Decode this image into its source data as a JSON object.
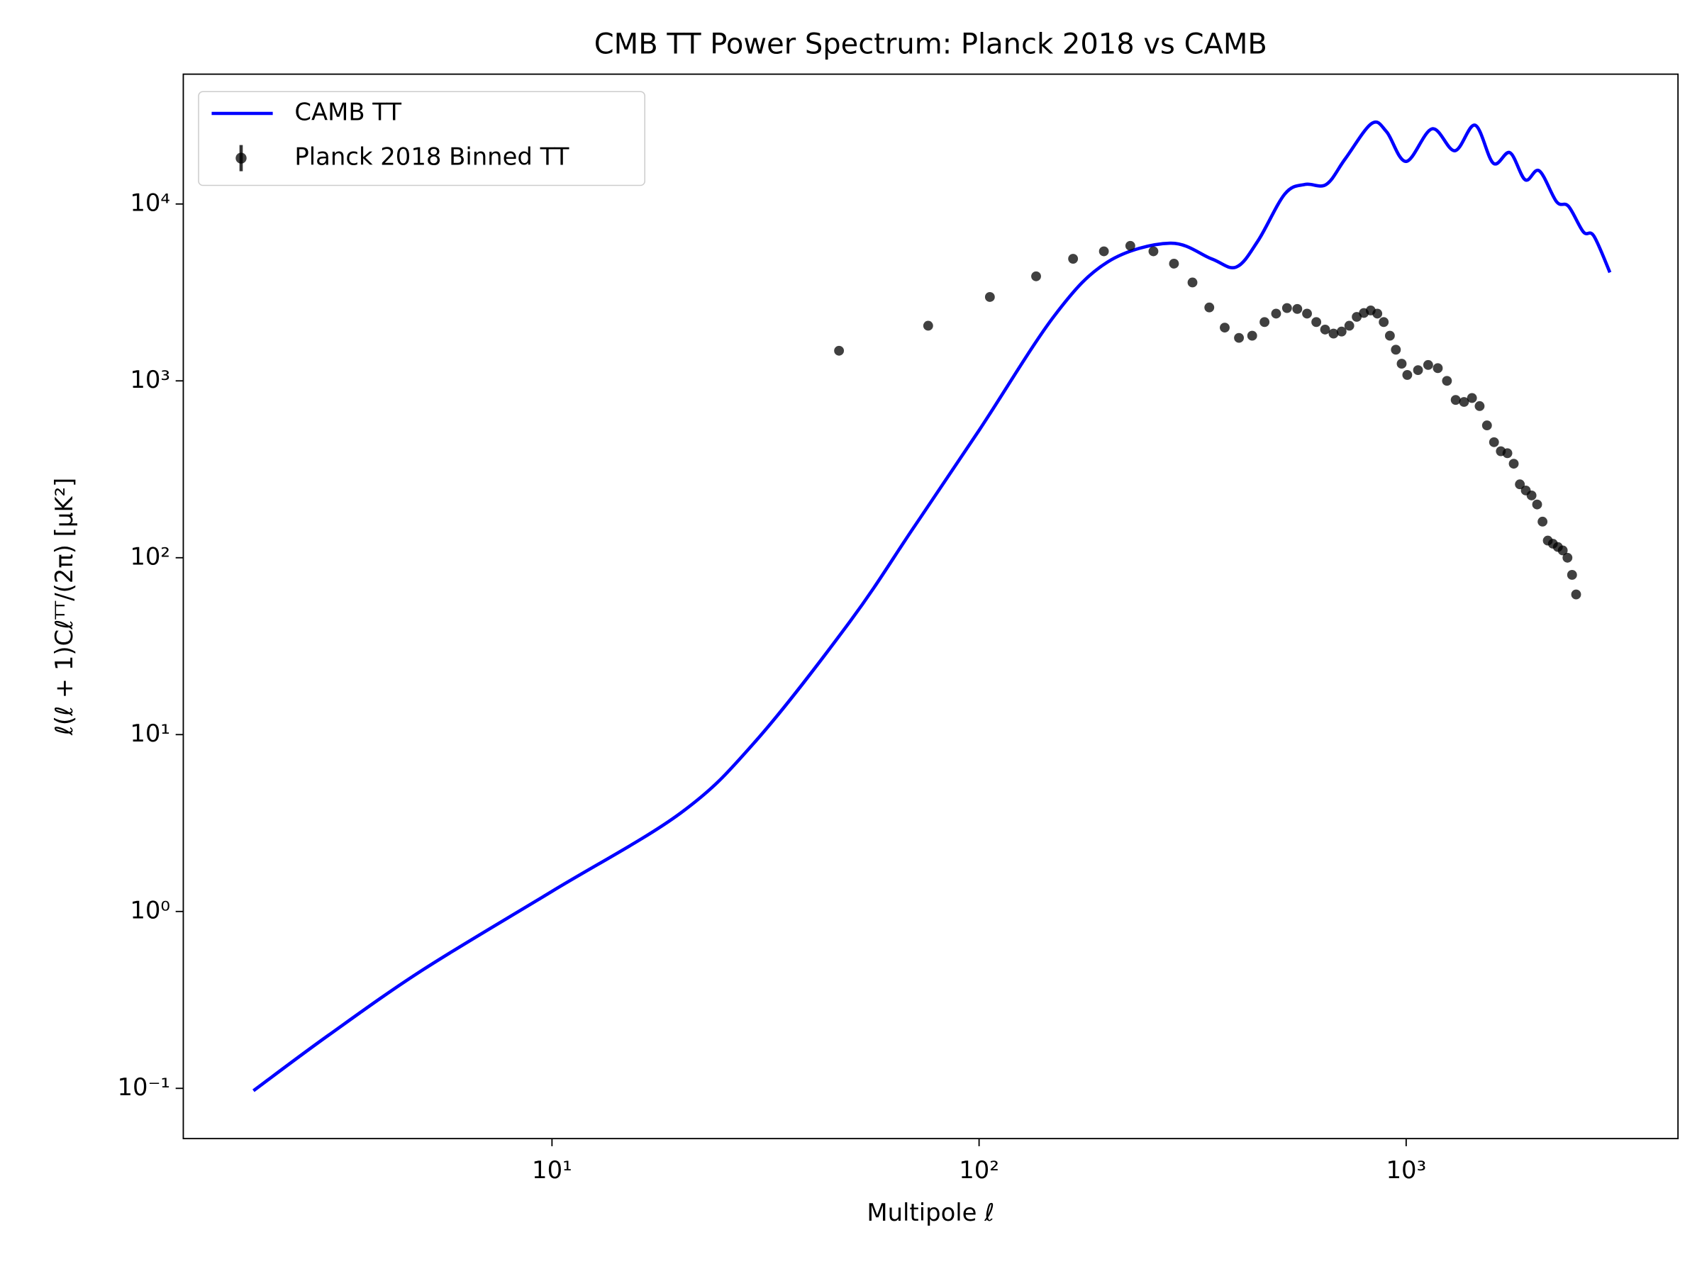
{
  "chart_data": {
    "type": "line",
    "title": "CMB TT Power Spectrum: Planck 2018 vs CAMB",
    "x_label": "Multipole ℓ",
    "y_label": "ℓ(ℓ + 1)Cℓᵀᵀ/(2π) [μK²]",
    "x_scale": "log",
    "y_scale": "log",
    "xlim": [
      1.37,
      4330
    ],
    "ylim": [
      0.052,
      54200
    ],
    "xticks": [
      {
        "value": 10,
        "label": "10¹"
      },
      {
        "value": 100,
        "label": "10²"
      },
      {
        "value": 1000,
        "label": "10³"
      }
    ],
    "yticks": [
      {
        "value": 0.1,
        "label": "10⁻¹"
      },
      {
        "value": 1,
        "label": "10⁰"
      },
      {
        "value": 10,
        "label": "10¹"
      },
      {
        "value": 100,
        "label": "10²"
      },
      {
        "value": 1000,
        "label": "10³"
      },
      {
        "value": 10000,
        "label": "10⁴"
      }
    ],
    "legend": "upper left",
    "series": [
      {
        "name": "CAMB TT",
        "type": "line",
        "color": "#0000ff",
        "x": [
          2,
          3,
          5,
          10,
          20,
          30,
          50,
          70,
          100,
          150,
          200,
          280,
          350,
          400,
          450,
          520,
          580,
          650,
          720,
          830,
          900,
          1000,
          1150,
          1300,
          1450,
          1600,
          1750,
          1900,
          2050,
          2250,
          2400,
          2600,
          2750,
          3000
        ],
        "values": [
          0.097,
          0.2,
          0.47,
          1.3,
          3.6,
          9.2,
          44,
          146,
          525,
          2330,
          4700,
          6000,
          4900,
          4400,
          6200,
          11400,
          12900,
          12900,
          18000,
          28500,
          25600,
          17400,
          26600,
          20000,
          27900,
          17000,
          19500,
          13700,
          15400,
          10300,
          9700,
          6950,
          6600,
          4100
        ]
      },
      {
        "name": "Planck 2018 Binned TT",
        "type": "scatter",
        "color": "#000000",
        "x": [
          47,
          76,
          106,
          136,
          166,
          196,
          226,
          256,
          286,
          316,
          346,
          376,
          406,
          436,
          466,
          496,
          526,
          556,
          586,
          616,
          646,
          676,
          706,
          736,
          766,
          796,
          826,
          856,
          886,
          916,
          946,
          976,
          1006,
          1066,
          1126,
          1186,
          1246,
          1306,
          1366,
          1426,
          1486,
          1546,
          1606,
          1666,
          1726,
          1786,
          1846,
          1906,
          1966,
          2026,
          2086,
          2146,
          2206,
          2266,
          2326,
          2386,
          2446,
          2500
        ],
        "values": [
          1480,
          2050,
          2980,
          3900,
          4900,
          5400,
          5800,
          5400,
          4600,
          3600,
          2600,
          2000,
          1750,
          1800,
          2150,
          2400,
          2580,
          2550,
          2400,
          2150,
          1950,
          1850,
          1900,
          2050,
          2300,
          2420,
          2500,
          2400,
          2150,
          1800,
          1500,
          1250,
          1080,
          1150,
          1230,
          1180,
          1000,
          780,
          760,
          800,
          720,
          560,
          450,
          400,
          390,
          340,
          260,
          240,
          225,
          200,
          160,
          125,
          120,
          115,
          110,
          100,
          80,
          62
        ]
      }
    ]
  }
}
